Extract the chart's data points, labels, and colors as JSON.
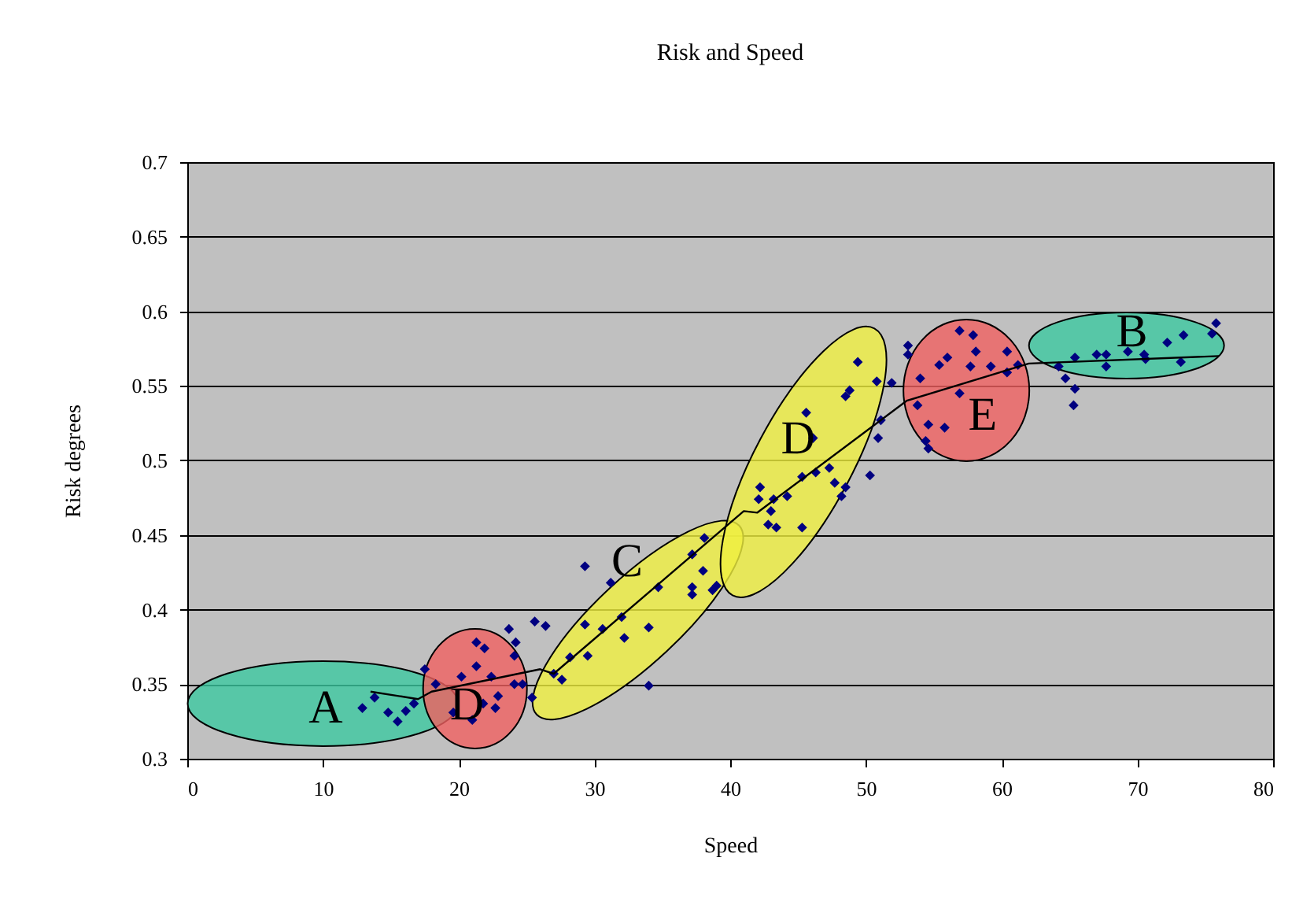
{
  "chart_data": {
    "type": "scatter",
    "title": "Risk and Speed",
    "xlabel": "Speed",
    "ylabel": "Risk degrees",
    "xlim": [
      0,
      80
    ],
    "xticks": [
      0,
      10,
      20,
      30,
      40,
      50,
      60,
      70,
      80
    ],
    "ylim": [
      0.3,
      0.7
    ],
    "yticks": [
      0.3,
      0.35,
      0.4,
      0.45,
      0.5,
      0.55,
      0.6,
      0.65,
      0.7
    ],
    "grid": "y",
    "legend": false,
    "marker": "diamond",
    "annotations": [
      "A",
      "D",
      "C",
      "D",
      "E",
      "B"
    ],
    "series": [
      {
        "color": "#000080",
        "x": [
          12.9,
          13.8,
          14.8,
          15.5,
          16.1,
          16.7,
          17.5,
          21.3,
          21.9,
          23.7,
          24.2,
          24.1,
          25.6,
          26.4,
          18.3,
          19.6,
          21.0,
          21.8,
          22.7,
          22.9,
          24.1,
          24.7,
          25.4,
          20.2,
          22.4,
          21.3,
          29.3,
          34.0,
          38.7,
          39.0,
          27.0,
          27.6,
          28.2,
          29.5,
          29.3,
          30.6,
          32.0,
          32.2,
          34.0,
          31.2,
          34.7,
          37.2,
          37.2,
          38.0,
          37.2,
          38.1,
          42.1,
          49.4,
          45.3,
          42.8,
          43.4,
          48.2,
          48.5,
          50.3,
          45.6,
          46.1,
          48.5,
          48.8,
          50.8,
          51.9,
          50.9,
          51.1,
          42.2,
          43.2,
          44.2,
          45.3,
          46.3,
          47.3,
          43.0,
          47.7,
          53.1,
          53.1,
          54.6,
          54.4,
          54.6,
          55.8,
          56.9,
          57.9,
          58.1,
          56.0,
          55.4,
          57.7,
          59.2,
          60.4,
          60.4,
          56.9,
          54.0,
          53.8,
          61.2,
          64.7,
          65.4,
          65.3,
          64.2,
          65.4,
          67.0,
          67.7,
          67.7,
          69.3,
          70.5,
          72.2,
          73.4,
          73.2,
          75.5,
          75.8,
          70.6
        ],
        "values": [
          0.334,
          0.341,
          0.331,
          0.325,
          0.332,
          0.337,
          0.36,
          0.378,
          0.374,
          0.387,
          0.378,
          0.369,
          0.392,
          0.389,
          0.35,
          0.331,
          0.326,
          0.337,
          0.334,
          0.342,
          0.35,
          0.35,
          0.341,
          0.355,
          0.355,
          0.362,
          0.429,
          0.349,
          0.413,
          0.416,
          0.357,
          0.353,
          0.368,
          0.369,
          0.39,
          0.387,
          0.395,
          0.381,
          0.388,
          0.418,
          0.415,
          0.415,
          0.41,
          0.426,
          0.437,
          0.448,
          0.474,
          0.566,
          0.455,
          0.457,
          0.455,
          0.476,
          0.482,
          0.49,
          0.532,
          0.515,
          0.543,
          0.547,
          0.553,
          0.552,
          0.515,
          0.527,
          0.482,
          0.474,
          0.476,
          0.489,
          0.492,
          0.495,
          0.466,
          0.485,
          0.577,
          0.571,
          0.524,
          0.513,
          0.508,
          0.522,
          0.587,
          0.584,
          0.573,
          0.569,
          0.564,
          0.563,
          0.563,
          0.573,
          0.559,
          0.545,
          0.555,
          0.537,
          0.564,
          0.555,
          0.548,
          0.537,
          0.563,
          0.569,
          0.571,
          0.563,
          0.571,
          0.573,
          0.571,
          0.579,
          0.584,
          0.566,
          0.585,
          0.592,
          0.568
        ]
      },
      {
        "type": "line",
        "color": "#000000",
        "marker": "none",
        "x": [
          13.5,
          17,
          18,
          26,
          27,
          41,
          42,
          53,
          62,
          76
        ],
        "values": [
          0.345,
          0.34,
          0.345,
          0.36,
          0.357,
          0.466,
          0.465,
          0.54,
          0.565,
          0.57
        ]
      }
    ]
  }
}
